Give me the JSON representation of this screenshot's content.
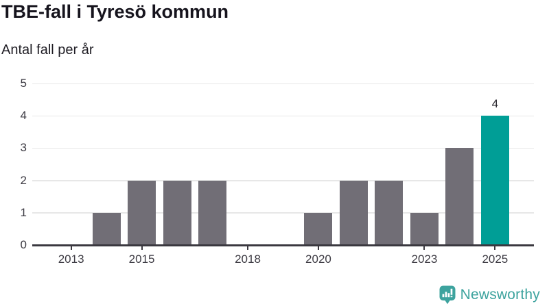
{
  "header": {
    "title": "TBE-fall i Tyresö kommun",
    "subtitle": "Antal fall per år"
  },
  "chart_data": {
    "type": "bar",
    "title": "TBE-fall i Tyresö kommun",
    "subtitle": "Antal fall per år",
    "categories": [
      2013,
      2014,
      2015,
      2016,
      2017,
      2018,
      2019,
      2020,
      2021,
      2022,
      2023,
      2024,
      2025
    ],
    "values": [
      0,
      1,
      2,
      2,
      2,
      0,
      0,
      1,
      2,
      2,
      1,
      3,
      4
    ],
    "highlight_category": 2025,
    "bar_value_labels": [
      {
        "category": 2025,
        "label": "4"
      }
    ],
    "ylim": [
      0,
      5
    ],
    "yticks": [
      0,
      1,
      2,
      3,
      4,
      5
    ],
    "xticks": [
      2013,
      2015,
      2018,
      2020,
      2023,
      2025
    ],
    "xlim": [
      2011.9,
      2026.1
    ],
    "grid": "horizontal",
    "legend_position": "none",
    "colors": {
      "bar": "#716e76",
      "highlight": "#009e96",
      "axis": "#3a383f",
      "grid": "#e7e7e7",
      "tick_label": "#3d3b43"
    }
  },
  "branding": {
    "text": "Newsworthy",
    "color": "#3da39e",
    "icon": "newsworthy-bar-chart-bubble-icon"
  }
}
